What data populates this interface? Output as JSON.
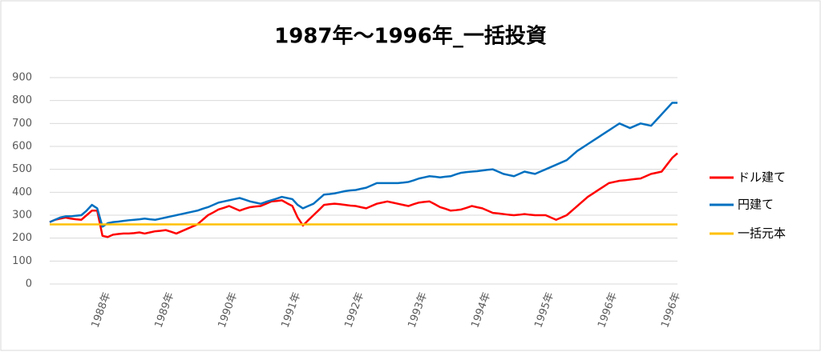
{
  "chart_data": {
    "type": "line",
    "title": "1987年～1996年_一括投資",
    "categories": [
      null,
      null,
      null,
      null,
      null,
      null,
      null,
      null,
      null,
      null,
      null,
      "1988年",
      null,
      null,
      null,
      null,
      null,
      null,
      null,
      null,
      null,
      null,
      null,
      "1989年",
      null,
      null,
      null,
      null,
      null,
      null,
      null,
      null,
      null,
      null,
      null,
      "1990年",
      null,
      null,
      null,
      null,
      null,
      null,
      null,
      null,
      null,
      null,
      null,
      "1991年",
      null,
      null,
      null,
      null,
      null,
      null,
      null,
      null,
      null,
      null,
      null,
      "1992年",
      null,
      null,
      null,
      null,
      null,
      null,
      null,
      null,
      null,
      null,
      null,
      "1993年",
      null,
      null,
      null,
      null,
      null,
      null,
      null,
      null,
      null,
      null,
      null,
      "1994年",
      null,
      null,
      null,
      null,
      null,
      null,
      null,
      null,
      null,
      null,
      null,
      "1995年",
      null,
      null,
      null,
      null,
      null,
      null,
      null,
      null,
      null,
      null,
      null,
      "1996年",
      null,
      null,
      null,
      null,
      null,
      null,
      null,
      null,
      null,
      null,
      null,
      "1996年"
    ],
    "series": [
      {
        "name": "ドル建て",
        "color": "#ff0000",
        "values": [
          270,
          280,
          285,
          290,
          285,
          282,
          280,
          300,
          320,
          320,
          210,
          205,
          215,
          218,
          220,
          220,
          222,
          225,
          220,
          225,
          230,
          232,
          235,
          228,
          220,
          230,
          240,
          250,
          260,
          280,
          300,
          312,
          325,
          332,
          340,
          330,
          320,
          328,
          335,
          338,
          340,
          350,
          360,
          362,
          365,
          352,
          340,
          290,
          255,
          278,
          300,
          322,
          345,
          348,
          350,
          348,
          345,
          342,
          340,
          335,
          330,
          340,
          350,
          355,
          360,
          355,
          350,
          345,
          340,
          348,
          355,
          358,
          360,
          348,
          335,
          328,
          320,
          322,
          325,
          332,
          340,
          335,
          330,
          320,
          310,
          308,
          305,
          302,
          300,
          302,
          305,
          302,
          300,
          300,
          300,
          290,
          280,
          290,
          300,
          320,
          340,
          360,
          380,
          395,
          410,
          425,
          440,
          445,
          450,
          452,
          455,
          458,
          460,
          470,
          480,
          485,
          490,
          520,
          550,
          570
        ]
      },
      {
        "name": "円建て",
        "color": "#0070c0",
        "values": [
          270,
          280,
          290,
          295,
          295,
          298,
          300,
          320,
          345,
          330,
          250,
          265,
          270,
          272,
          275,
          278,
          280,
          282,
          285,
          282,
          280,
          285,
          290,
          295,
          300,
          305,
          310,
          315,
          320,
          328,
          335,
          345,
          355,
          360,
          365,
          370,
          375,
          368,
          360,
          355,
          350,
          358,
          365,
          372,
          380,
          375,
          370,
          345,
          330,
          340,
          350,
          370,
          390,
          392,
          395,
          400,
          405,
          408,
          410,
          415,
          420,
          430,
          440,
          440,
          440,
          440,
          440,
          442,
          445,
          452,
          460,
          465,
          470,
          468,
          465,
          468,
          470,
          478,
          485,
          488,
          490,
          492,
          495,
          498,
          500,
          490,
          480,
          475,
          470,
          480,
          490,
          485,
          480,
          490,
          500,
          510,
          520,
          530,
          540,
          560,
          580,
          595,
          610,
          625,
          640,
          655,
          670,
          685,
          700,
          690,
          680,
          690,
          700,
          695,
          690,
          715,
          740,
          765,
          790,
          790
        ]
      },
      {
        "name": "一括元本",
        "color": "#ffc000",
        "values": [
          260,
          260,
          260,
          260,
          260,
          260,
          260,
          260,
          260,
          260,
          260,
          260,
          260,
          260,
          260,
          260,
          260,
          260,
          260,
          260,
          260,
          260,
          260,
          260,
          260,
          260,
          260,
          260,
          260,
          260,
          260,
          260,
          260,
          260,
          260,
          260,
          260,
          260,
          260,
          260,
          260,
          260,
          260,
          260,
          260,
          260,
          260,
          260,
          260,
          260,
          260,
          260,
          260,
          260,
          260,
          260,
          260,
          260,
          260,
          260,
          260,
          260,
          260,
          260,
          260,
          260,
          260,
          260,
          260,
          260,
          260,
          260,
          260,
          260,
          260,
          260,
          260,
          260,
          260,
          260,
          260,
          260,
          260,
          260,
          260,
          260,
          260,
          260,
          260,
          260,
          260,
          260,
          260,
          260,
          260,
          260,
          260,
          260,
          260,
          260,
          260,
          260,
          260,
          260,
          260,
          260,
          260,
          260,
          260,
          260,
          260,
          260,
          260,
          260,
          260,
          260,
          260,
          260,
          260,
          260
        ]
      }
    ],
    "ylim": [
      0,
      900
    ],
    "yticks": [
      0,
      100,
      200,
      300,
      400,
      500,
      600,
      700,
      800,
      900
    ],
    "grid": true,
    "legend": "right"
  }
}
